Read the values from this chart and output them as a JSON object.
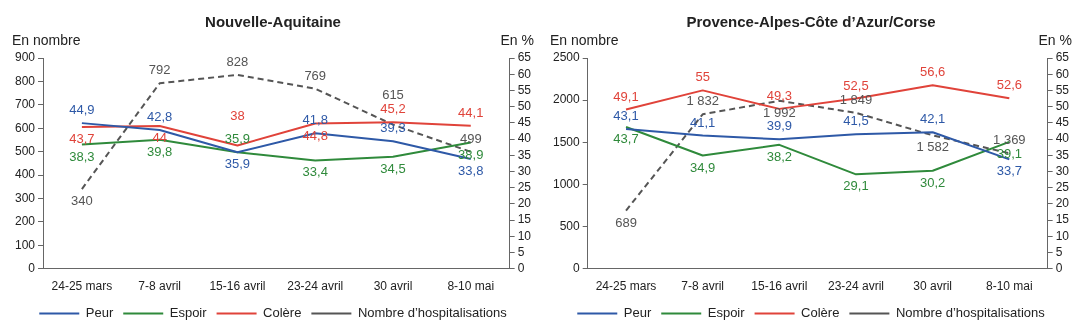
{
  "chart_data": [
    {
      "type": "line",
      "title": "Nouvelle-Aquitaine",
      "ylabel": "En nombre",
      "y2label": "En %",
      "categories": [
        "24-25 mars",
        "7-8 avril",
        "15-16 avril",
        "23-24 avril",
        "30 avril",
        "8-10 mai"
      ],
      "series": [
        {
          "name": "Peur",
          "color": "#2e59a7",
          "axis": "y2",
          "values": [
            44.9,
            42.8,
            35.9,
            41.8,
            39.3,
            33.8
          ],
          "value_labels": [
            "44,9",
            "42,8",
            "35,9",
            "41,8",
            "39,3",
            "33,8"
          ]
        },
        {
          "name": "Espoir",
          "color": "#2f8a3b",
          "axis": "y2",
          "values": [
            38.3,
            39.8,
            35.9,
            33.4,
            34.5,
            38.9
          ],
          "value_labels": [
            "38,3",
            "39,8",
            "35,9",
            "33,4",
            "34,5",
            "38,9"
          ]
        },
        {
          "name": "Colère",
          "color": "#e0433a",
          "axis": "y2",
          "values": [
            43.7,
            44,
            38,
            44.8,
            45.2,
            44.1
          ],
          "value_labels": [
            "43,7",
            "44",
            "38",
            "44,8",
            "45,2",
            "44,1"
          ]
        },
        {
          "name": "Nombre d’hospitalisations",
          "color": "#555555",
          "line_style": "dashed",
          "values": [
            340,
            792,
            828,
            769,
            615,
            499
          ],
          "value_labels": [
            "340",
            "792",
            "828",
            "769",
            "615",
            "499"
          ]
        }
      ],
      "ylim": [
        0,
        900
      ],
      "yticks": [
        0,
        100,
        200,
        300,
        400,
        500,
        600,
        700,
        800,
        900
      ],
      "y2lim": [
        0,
        65
      ],
      "y2ticks": [
        0,
        5,
        10,
        15,
        20,
        25,
        30,
        35,
        40,
        45,
        50,
        55,
        60,
        65
      ],
      "grid": false,
      "legend": "bottom",
      "marker": "none"
    },
    {
      "type": "line",
      "title": "Provence-Alpes-Côte d’Azur/Corse",
      "ylabel": "En nombre",
      "y2label": "En %",
      "categories": [
        "24-25 mars",
        "7-8 avril",
        "15-16 avril",
        "23-24 avril",
        "30 avril",
        "8-10 mai"
      ],
      "series": [
        {
          "name": "Peur",
          "color": "#2e59a7",
          "axis": "y2",
          "values": [
            43.1,
            41.1,
            39.9,
            41.5,
            42.1,
            33.7
          ],
          "value_labels": [
            "43,1",
            "41,1",
            "39,9",
            "41,5",
            "42,1",
            "33,7"
          ]
        },
        {
          "name": "Espoir",
          "color": "#2f8a3b",
          "axis": "y2",
          "values": [
            43.7,
            34.9,
            38.2,
            29.1,
            30.2,
            39.1
          ],
          "value_labels": [
            "43,7",
            "34,9",
            "38,2",
            "29,1",
            "30,2",
            "39,1"
          ]
        },
        {
          "name": "Colère",
          "color": "#e0433a",
          "axis": "y2",
          "values": [
            49.1,
            55,
            49.3,
            52.5,
            56.6,
            52.6
          ],
          "value_labels": [
            "49,1",
            "55",
            "49,3",
            "52,5",
            "56,6",
            "52,6"
          ]
        },
        {
          "name": "Nombre d’hospitalisations",
          "color": "#555555",
          "line_style": "dashed",
          "values": [
            689,
            1832,
            1992,
            1849,
            1582,
            1369
          ],
          "value_labels": [
            "689",
            "1 832",
            "1 992",
            "1 849",
            "1 582",
            "1 369"
          ]
        }
      ],
      "ylim": [
        0,
        2500
      ],
      "yticks": [
        0,
        500,
        1000,
        1500,
        2000,
        2500
      ],
      "y2lim": [
        0,
        65
      ],
      "y2ticks": [
        0,
        5,
        10,
        15,
        20,
        25,
        30,
        35,
        40,
        45,
        50,
        55,
        60,
        65
      ],
      "grid": false,
      "legend": "bottom",
      "marker": "none"
    }
  ]
}
